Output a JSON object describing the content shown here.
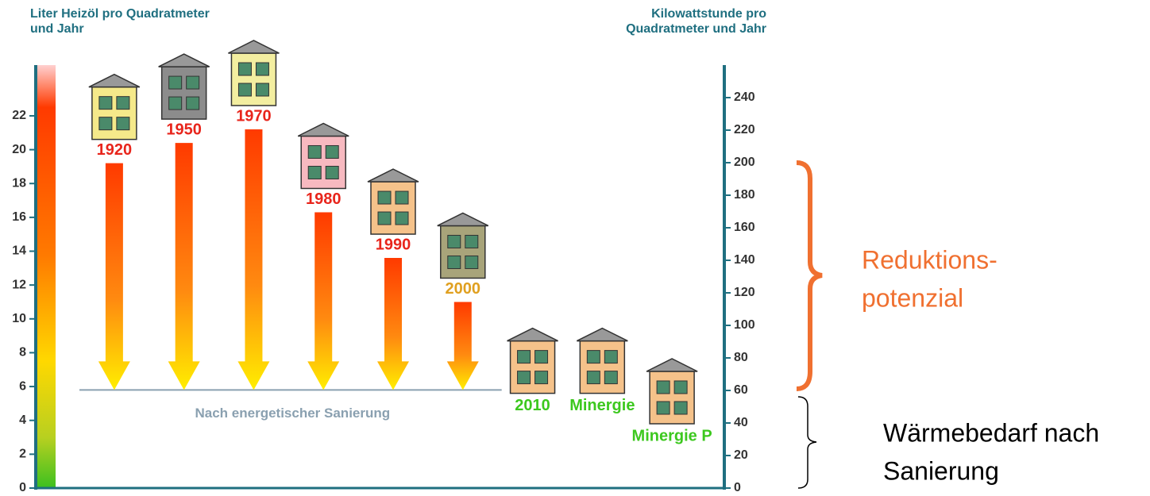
{
  "chart_data": {
    "type": "arrow",
    "ylabel": "Liter Heizöl pro Quadratmeter und Jahr",
    "y2label": "Kilowattstunde pro Quadratmeter und Jahr",
    "categories": [
      "1920",
      "1950",
      "1970",
      "1980",
      "1990",
      "2000",
      "2010",
      "Minergie",
      "Minergie P"
    ],
    "values": [
      19.2,
      20.4,
      21.2,
      16.3,
      13.6,
      11,
      5.6,
      5.6,
      3.8
    ],
    "label_colors": [
      "#e8251c",
      "#e8251c",
      "#e8251c",
      "#e8251c",
      "#e8251c",
      "#e0a020",
      "#3cc81e",
      "#3cc81e",
      "#3cc81e"
    ],
    "colors": [
      "#f5e98a",
      "#8c8c8c",
      "#f3eea0",
      "#f7b9c0",
      "#f5c28a",
      "#a8a47a",
      "#f5c28a",
      "#f5c28a",
      "#f5c28a"
    ],
    "renovation_level": 5.8,
    "renovation_label": "Nach energetischer Sanierung",
    "ylim": [
      0,
      25
    ],
    "yticks": [
      0,
      2,
      4,
      6,
      8,
      10,
      12,
      14,
      16,
      18,
      20,
      22
    ],
    "y2lim": [
      0,
      260
    ],
    "y2ticks": [
      0,
      20,
      40,
      60,
      80,
      100,
      120,
      140,
      160,
      180,
      200,
      220,
      240
    ],
    "annotations": [
      [
        "Reduktions-",
        "potenzial"
      ],
      [
        "Wärmebedarf nach",
        "Sanierung"
      ]
    ]
  }
}
